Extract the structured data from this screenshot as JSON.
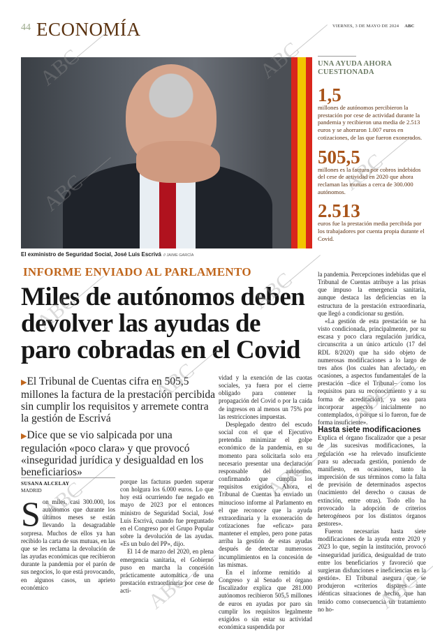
{
  "header": {
    "page_number": "44",
    "section": "ECONOMÍA",
    "date": "VIERNES, 3 DE MAYO DE 2024",
    "brand": "ABC"
  },
  "photo": {
    "caption": "El exministro de Seguridad Social, José Luis Escrivá",
    "credit": "// JAIME GARCÍA"
  },
  "sidebar": {
    "title": "UNA AYUDA AHORA CUESTIONADA",
    "facts": [
      {
        "number": "1,5",
        "text": "millones de autónomos percibieron la prestación por cese de actividad durante la pandemia y recibieron una media de 2.513 euros y se ahorraron 1.007 euros en cotizaciones, de las que fueron exonerados."
      },
      {
        "number": "505,5",
        "text": "millones es la factura por cobros indebidos del cese de actividad en 2020 que ahora reclaman las mutuas a cerca de 300.000 autónomos."
      },
      {
        "number": "2.513",
        "text": "euros fue la prestación media percibida por los trabajadores por cuenta propia durante el Covid."
      }
    ]
  },
  "article": {
    "kicker": "INFORME ENVIADO AL PARLAMENTO",
    "headline": "Miles de autónomos deben devolver las ayudas de paro cobradas en el Covid",
    "bullets": [
      "El Tribunal de Cuentas cifra en 505,5 millones la factura de la prestación percibida sin cumplir los requisitos y arremete contra la gestión de Escrivá",
      "Dice que se vio salpicada por una regulación «poco clara» y que provocó «inseguridad jurídica y desigualdad en los beneficiarios»"
    ],
    "author": "SUSANA ALCELAY",
    "location": "MADRID",
    "dropcap": "S",
    "col1": "on miles, casi 300.000, los autónomos que durante los últimos meses se están llevando la desagradable sorpresa. Muchos de ellos ya han recibido la carta de sus mutuas, en las que se les reclama la devolución de las ayudas económicas que recibieron durante la pandemia por el parón de sus negocios, lo que está provocando, en algunos casos, un aprieto económico",
    "col2": [
      "porque las facturas pueden superar con holgura los 6.000 euros. Lo que hoy está ocurriendo fue negado en mayo de 2023 por el entonces ministro de Seguridad Social, José Luis Escrivá, cuando fue preguntado en el Congreso por el Grupo Popular sobre la devolución de las ayudas. «Es un bulo del PP», dijo.",
      "El 14 de marzo del 2020, en plena emergencia sanitaria, el Gobierno puso en marcha la concesión prácticamente automática de una prestación extraordinaria por cese de acti-"
    ],
    "col3": [
      "vidad y la exención de las cuotas sociales, ya fuera por el cierre obligado para contener la propagación del Covid o por la caída de ingresos en al menos un 75% por las restricciones impuestas.",
      "Desplegado dentro del escudo social con el que el Ejecutivo pretendía minimizar el golpe económico de la pandemia, en su momento para solicitarla solo era necesario presentar una declaración responsable del autónomo, confirmando que cumplía los requisitos exigidos. Ahora, el Tribunal de Cuentas ha enviado un minucioso informe al Parlamento en el que reconoce que la ayuda extraordinaria y la exoneración de cotizaciones fue «eficaz» para mantener el empleo, pero pone patas arriba la gestión de estas ayudas después de detectar numerosos incumplimientos en la concesión de las mismas.",
      "En el informe remitido al Congreso y al Senado el órgano fiscalizador explica que 281.000 autónomos recibieron 505,5 millones de euros en ayudas por paro sin cumplir los requisitos legalmente exigidos o sin estar su actividad económica suspendida por"
    ],
    "col4": [
      "la pandemia. Percepciones indebidas que el Tribunal de Cuentas atribuye a las prisas que impuso la emergencia sanitaria, aunque destaca las deficiencias en la estructura de la prestación extraordinaria, que llegó a condicionar su gestión.",
      "«La gestión de esta prestación se ha visto condicionada, principalmente, por su escasa y poco clara regulación jurídica, circunscrita a un único artículo (17 del RDL 8/2020) que ha sido objeto de numerosas modificaciones a lo largo de tres años (los cuales han afectado, en ocasiones, a aspectos fundamentales de la prestación –dice el Tribunal– como los requisitos para su reconocimiento y a su forma de acreditación), ya sea para incorporar aspectos inicialmente no contemplados, o porque si lo fueron, fue de forma insuficiente»."
    ],
    "subhead": "Hasta siete modificaciones",
    "col4b": [
      "Explica el órgano fiscalizador que a pesar de las sucesivas modificaciones, la regulación «se ha relevado insuficiente para su adecuada gestión, poniendo de manifiesto, en ocasiones, tanto la imprecisión de sus términos como la falta de previsión de determinados aspectos (nacimiento del derecho o causas de extinción, entre otras). Todo ello ha provocado la adopción de criterios heterogéneos por los distintos órganos gestores».",
      "Fueron necesarias hasta siete modificaciones de la ayuda entre 2020 y 2023 lo que, según la institución, provocó «inseguridad jurídica, desigualdad de trato entre los beneficiarios y favoreció que surgieran disfunciones e ineficiencias en la gestión». El Tribunal asegura que se produjeron «criterios dispares ante idénticas situaciones de hecho, que han tenido como consecuencia un tratamiento no ho-"
    ]
  },
  "watermark": "ABC",
  "colors": {
    "section": "#5a3210",
    "kicker": "#c0661c",
    "sidebar_number": "#a8541a",
    "sidebar_text": "#5a2e0e",
    "sidebar_title": "#6b7a63"
  }
}
